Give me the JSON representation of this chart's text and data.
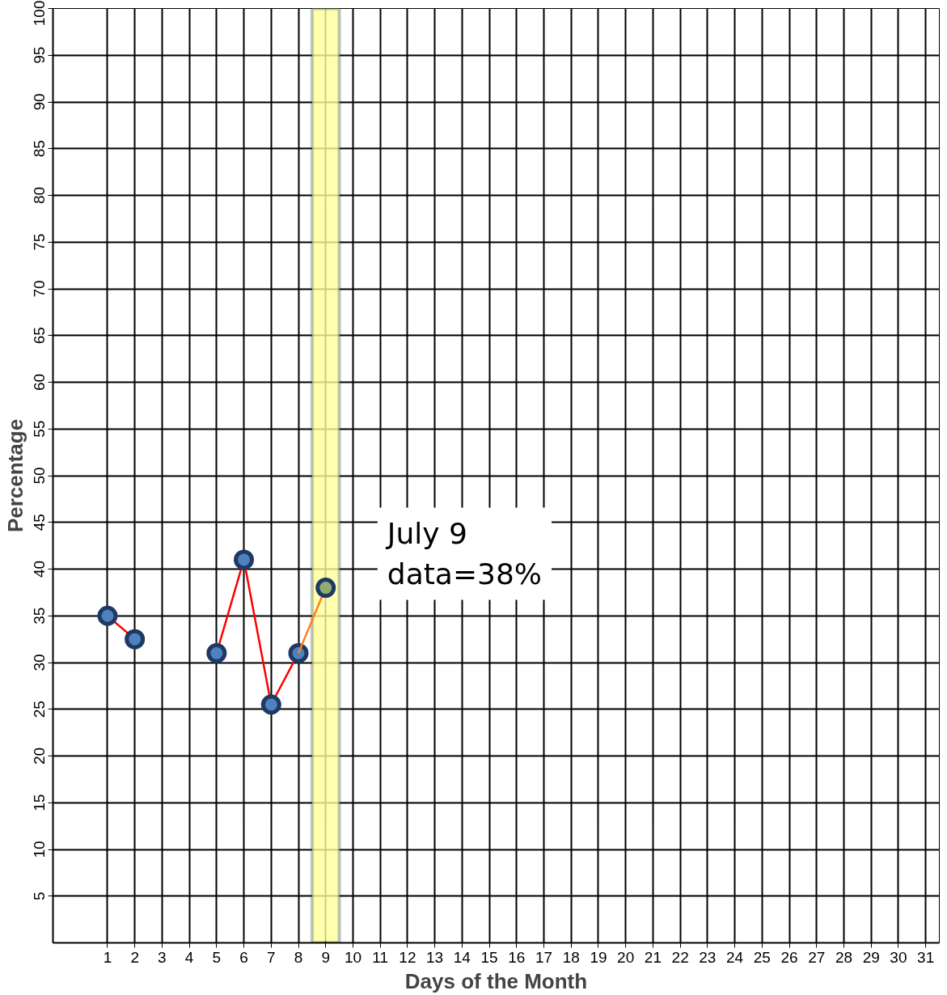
{
  "chart_data": {
    "type": "line",
    "xlabel": "Days of the Month",
    "ylabel": "Percentage",
    "x": [
      1,
      2,
      3,
      4,
      5,
      6,
      7,
      8
    ],
    "series": [
      {
        "color": "#ff0000",
        "colors": [
          "#4f81bd",
          "#4f81bd",
          null,
          null,
          "#4f81bd",
          "#4f81bd",
          "#4f81bd",
          "#4f81bd"
        ],
        "values": [
          35,
          32.5,
          null,
          null,
          31,
          41,
          25.5,
          31
        ]
      },
      {
        "color": "#ff7f27",
        "x": [
          8,
          9
        ],
        "colors": [
          null,
          "#8fae6e"
        ],
        "values": [
          31,
          38
        ]
      }
    ],
    "xlim": [
      -1,
      31.5
    ],
    "xticks": [
      1,
      2,
      3,
      4,
      5,
      6,
      7,
      8,
      9,
      10,
      11,
      12,
      13,
      14,
      15,
      16,
      17,
      18,
      19,
      20,
      21,
      22,
      23,
      24,
      25,
      26,
      27,
      28,
      29,
      30,
      31
    ],
    "ylim": [
      0,
      100
    ],
    "yticks": [
      5,
      10,
      15,
      20,
      25,
      30,
      35,
      40,
      45,
      50,
      55,
      60,
      65,
      70,
      75,
      80,
      85,
      90,
      95,
      100
    ],
    "grid": true,
    "marker": "circle",
    "line_style": "solid",
    "bands": [
      {
        "axis": "x",
        "from": 8.5,
        "to": 9.5,
        "color": "#ffff99"
      }
    ],
    "annotations": [
      {
        "text": "July 9\ndata=38%",
        "x": 9,
        "y": 38
      }
    ]
  }
}
